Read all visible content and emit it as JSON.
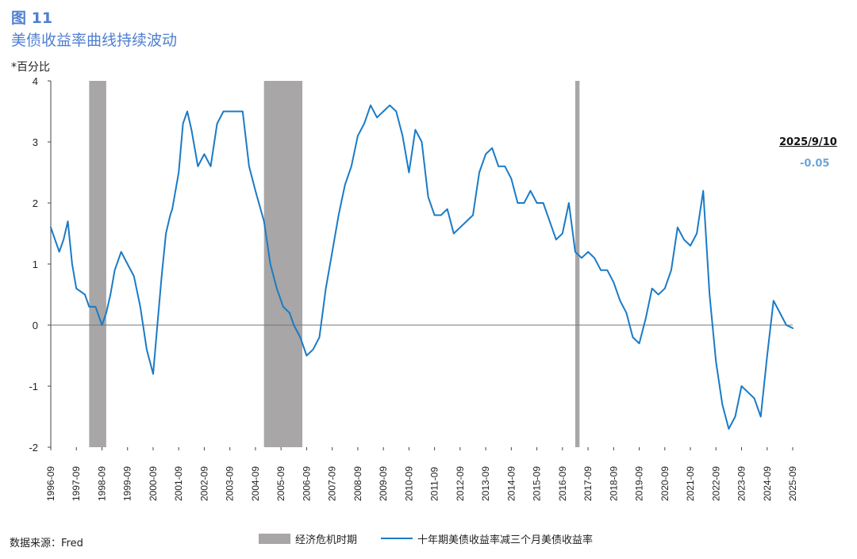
{
  "figure": {
    "label": "图 11",
    "title": "美债收益率曲线持续波动",
    "unit": "*百分比",
    "source": "数据来源：Fred"
  },
  "callout": {
    "date": "2025/9/10",
    "value": "-0.05"
  },
  "colors": {
    "title": "#4f7fd0",
    "series": "#1a7bc6",
    "recession": "#a8a6a6",
    "callout_value": "#6aa6d8"
  },
  "chart_data": {
    "type": "line",
    "title": "",
    "xlabel": "",
    "ylabel": "*百分比",
    "ylim": [
      -2,
      4
    ],
    "yticks": [
      -2,
      -1,
      0,
      1,
      2,
      3,
      4
    ],
    "x_tick_labels": [
      "1996-09",
      "1997-09",
      "1998-09",
      "1999-09",
      "2000-09",
      "2001-09",
      "2002-09",
      "2003-09",
      "2004-09",
      "2005-09",
      "2006-09",
      "2007-09",
      "2008-09",
      "2009-09",
      "2010-09",
      "2011-09",
      "2012-09",
      "2013-09",
      "2014-09",
      "2015-09",
      "2016-09",
      "2017-09",
      "2018-09",
      "2019-09",
      "2020-09",
      "2021-09",
      "2022-09",
      "2023-09",
      "2024-09",
      "2025-09"
    ],
    "x_range": [
      "1996-09",
      "2025-09"
    ],
    "grid": false,
    "legend": "bottom",
    "recession_bands": [
      {
        "start": "1998-03",
        "end": "1998-11"
      },
      {
        "start": "2005-01",
        "end": "2006-07"
      },
      {
        "start": "2017-03",
        "end": "2017-05"
      }
    ],
    "series": [
      {
        "name": "十年期美债收益率减三个月美债收益率",
        "x": [
          "1996-09",
          "1997-01",
          "1997-03",
          "1997-05",
          "1997-07",
          "1997-09",
          "1998-01",
          "1998-03",
          "1998-06",
          "1998-09",
          "1998-11",
          "1999-01",
          "1999-03",
          "1999-06",
          "1999-09",
          "1999-12",
          "2000-03",
          "2000-06",
          "2000-09",
          "2000-11",
          "2001-01",
          "2001-03",
          "2001-05",
          "2001-06",
          "2001-09",
          "2001-11",
          "2002-01",
          "2002-03",
          "2002-06",
          "2002-09",
          "2002-12",
          "2003-03",
          "2003-06",
          "2003-09",
          "2003-12",
          "2004-03",
          "2004-06",
          "2004-09",
          "2005-01",
          "2005-04",
          "2005-07",
          "2005-10",
          "2006-01",
          "2006-03",
          "2006-06",
          "2006-09",
          "2006-12",
          "2007-03",
          "2007-06",
          "2007-09",
          "2007-12",
          "2008-03",
          "2008-06",
          "2008-09",
          "2008-12",
          "2009-03",
          "2009-06",
          "2009-09",
          "2009-12",
          "2010-03",
          "2010-06",
          "2010-09",
          "2010-12",
          "2011-03",
          "2011-06",
          "2011-09",
          "2011-12",
          "2012-03",
          "2012-06",
          "2012-09",
          "2012-12",
          "2013-03",
          "2013-06",
          "2013-09",
          "2013-12",
          "2014-03",
          "2014-06",
          "2014-09",
          "2014-12",
          "2015-03",
          "2015-06",
          "2015-09",
          "2015-12",
          "2016-03",
          "2016-06",
          "2016-09",
          "2016-12",
          "2017-03",
          "2017-06",
          "2017-09",
          "2017-12",
          "2018-03",
          "2018-06",
          "2018-09",
          "2018-12",
          "2019-03",
          "2019-06",
          "2019-09",
          "2019-12",
          "2020-03",
          "2020-06",
          "2020-09",
          "2020-12",
          "2021-03",
          "2021-06",
          "2021-09",
          "2021-12",
          "2022-03",
          "2022-06",
          "2022-09",
          "2022-12",
          "2023-03",
          "2023-06",
          "2023-09",
          "2023-12",
          "2024-03",
          "2024-06",
          "2024-09",
          "2024-12",
          "2025-03",
          "2025-06",
          "2025-09"
        ],
        "values": [
          1.6,
          1.2,
          1.4,
          1.7,
          1.0,
          0.6,
          0.5,
          0.3,
          0.3,
          0.0,
          0.2,
          0.5,
          0.9,
          1.2,
          1.0,
          0.8,
          0.3,
          -0.4,
          -0.8,
          0.0,
          0.8,
          1.5,
          1.8,
          1.9,
          2.5,
          3.3,
          3.5,
          3.2,
          2.6,
          2.8,
          2.6,
          3.3,
          3.5,
          3.5,
          3.5,
          3.5,
          2.6,
          2.2,
          1.7,
          1.0,
          0.6,
          0.3,
          0.2,
          0.0,
          -0.2,
          -0.5,
          -0.4,
          -0.2,
          0.6,
          1.2,
          1.8,
          2.3,
          2.6,
          3.1,
          3.3,
          3.6,
          3.4,
          3.5,
          3.6,
          3.5,
          3.1,
          2.5,
          3.2,
          3.0,
          2.1,
          1.8,
          1.8,
          1.9,
          1.5,
          1.6,
          1.7,
          1.8,
          2.5,
          2.8,
          2.9,
          2.6,
          2.6,
          2.4,
          2.0,
          2.0,
          2.2,
          2.0,
          2.0,
          1.7,
          1.4,
          1.5,
          2.0,
          1.2,
          1.1,
          1.2,
          1.1,
          0.9,
          0.9,
          0.7,
          0.4,
          0.2,
          -0.2,
          -0.3,
          0.1,
          0.6,
          0.5,
          0.6,
          0.9,
          1.6,
          1.4,
          1.3,
          1.5,
          2.2,
          0.5,
          -0.6,
          -1.3,
          -1.7,
          -1.5,
          -1.0,
          -1.1,
          -1.2,
          -1.5,
          -0.5,
          0.4,
          0.2,
          0.0,
          -0.05
        ]
      }
    ]
  },
  "legend_items": {
    "recession_label": "经济危机时期",
    "series_label": "十年期美债收益率减三个月美债收益率"
  }
}
